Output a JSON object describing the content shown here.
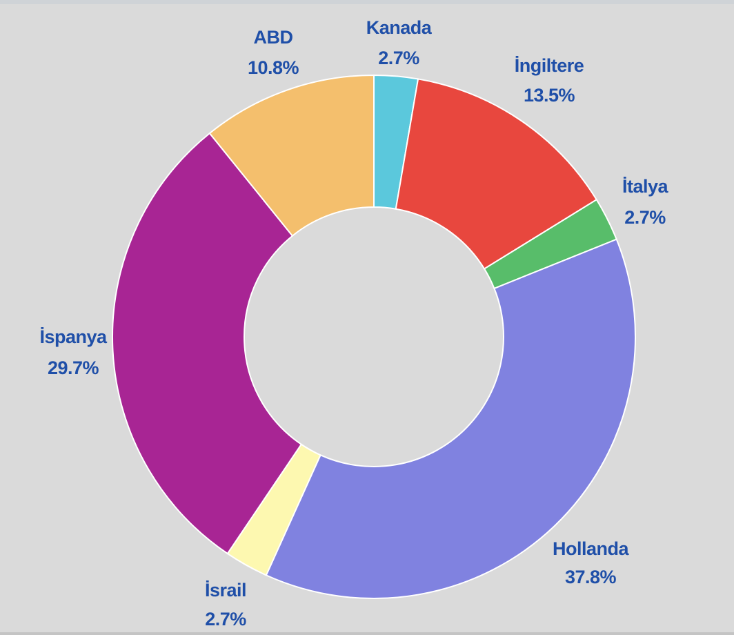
{
  "chart_data": {
    "type": "pie",
    "variant": "donut",
    "title": "",
    "legend": "none",
    "categories": [
      "Kanada",
      "İngiltere",
      "İtalya",
      "Hollanda",
      "İsrail",
      "İspanya",
      "ABD"
    ],
    "values": [
      2.7,
      13.5,
      2.7,
      37.8,
      2.7,
      29.7,
      10.8
    ],
    "labels": [
      "2.7%",
      "13.5%",
      "2.7%",
      "37.8%",
      "2.7%",
      "29.7%",
      "10.8%"
    ],
    "colors": [
      "#5bc8dc",
      "#e8473e",
      "#58bd6a",
      "#8082e0",
      "#fdf8b0",
      "#a82594",
      "#f4bf6d"
    ],
    "label_color": "#1f4fa8",
    "background": "#dadada"
  }
}
